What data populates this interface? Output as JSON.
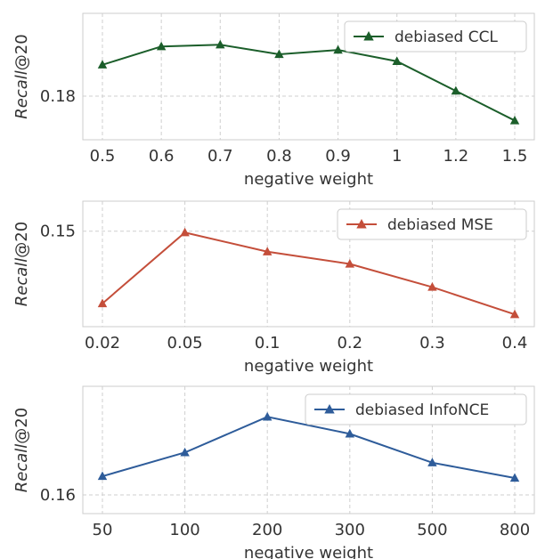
{
  "chart_data": [
    {
      "type": "line",
      "categories": [
        "0.5",
        "0.6",
        "0.7",
        "0.8",
        "0.9",
        "1",
        "1.2",
        "1.5"
      ],
      "series": [
        {
          "name": "debiased CCL",
          "values": [
            0.1836,
            0.1857,
            0.1859,
            0.1848,
            0.1853,
            0.184,
            0.1806,
            0.1772
          ]
        }
      ],
      "xlabel": "negative weight",
      "ylabel": "Recall@20",
      "ylim": [
        0.175,
        0.1895
      ],
      "yticks": [
        0.18
      ],
      "ytick_labels": [
        "0.18"
      ],
      "color": "#1b5e2a",
      "legend_position": "top-right",
      "grid": true
    },
    {
      "type": "line",
      "categories": [
        "0.02",
        "0.05",
        "0.1",
        "0.2",
        "0.3",
        "0.4"
      ],
      "series": [
        {
          "name": "debiased MSE",
          "values": [
            0.1447,
            0.1499,
            0.1485,
            0.1476,
            0.1459,
            0.1439
          ]
        }
      ],
      "xlabel": "negative weight",
      "ylabel": "Recall@20",
      "ylim": [
        0.143,
        0.1522
      ],
      "yticks": [
        0.15
      ],
      "ytick_labels": [
        "0.15"
      ],
      "color": "#c44e3a",
      "legend_position": "top-right",
      "grid": true
    },
    {
      "type": "line",
      "categories": [
        "50",
        "100",
        "200",
        "300",
        "500",
        "800"
      ],
      "series": [
        {
          "name": "debiased InfoNCE",
          "values": [
            0.1611,
            0.1625,
            0.1646,
            0.1636,
            0.1619,
            0.161
          ]
        }
      ],
      "xlabel": "negative weight",
      "ylabel": "Recall@20",
      "ylim": [
        0.1589,
        0.1664
      ],
      "yticks": [
        0.16
      ],
      "ytick_labels": [
        "0.16"
      ],
      "color": "#2e5c9a",
      "legend_position": "top-right",
      "grid": true
    }
  ]
}
